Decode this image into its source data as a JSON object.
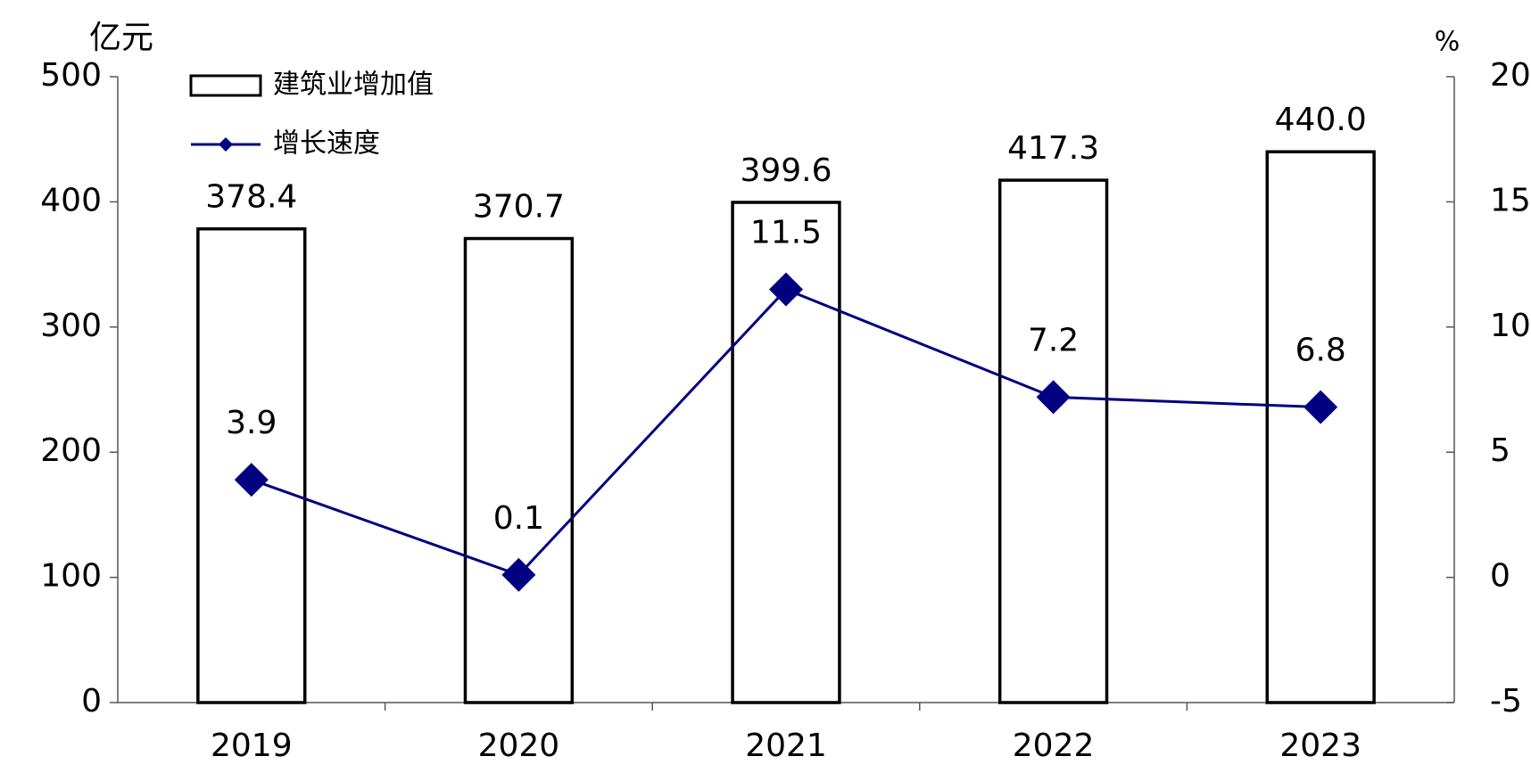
{
  "chart_data": {
    "type": "bar",
    "y_label": "亿元",
    "y2_label": "%",
    "categories": [
      "2019",
      "2020",
      "2021",
      "2022",
      "2023"
    ],
    "series": [
      {
        "name": "建筑业增加值",
        "type": "bar",
        "color": "#000000",
        "values": [
          378.4,
          370.7,
          399.6,
          417.3,
          440.0
        ],
        "value_labels": [
          "378.4",
          "370.7",
          "399.6",
          "417.3",
          "440.0"
        ]
      },
      {
        "name": "增长速度",
        "type": "line",
        "color": "#000080",
        "axis": "y2",
        "values": [
          3.9,
          0.1,
          11.5,
          7.2,
          6.8
        ]
      }
    ],
    "ylim": [
      0,
      500
    ],
    "yticks": [
      0,
      100,
      200,
      300,
      400,
      500
    ],
    "y2lim": [
      -5,
      20
    ],
    "y2ticks": [
      -5,
      0,
      5,
      10,
      15,
      20
    ],
    "legend": "top-left"
  }
}
